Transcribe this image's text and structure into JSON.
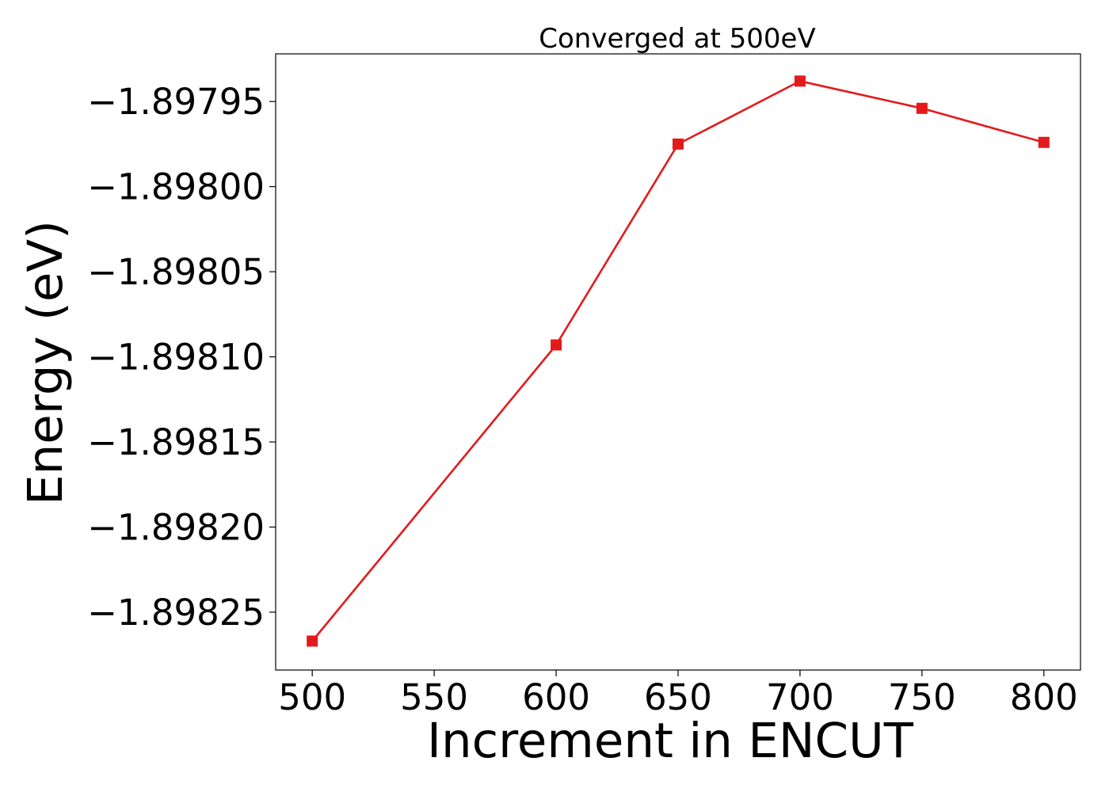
{
  "chart_data": {
    "type": "line",
    "title": "Converged at 500eV",
    "xlabel": "Increment in ENCUT",
    "ylabel": "Energy (eV)",
    "x": [
      500,
      600,
      650,
      700,
      750,
      800
    ],
    "series": [
      {
        "values": [
          -1.898267,
          -1.898093,
          -1.897975,
          -1.897938,
          -1.897954,
          -1.897974
        ],
        "color": "#e31a1c",
        "marker": "square"
      }
    ],
    "xticks": [
      500,
      550,
      600,
      650,
      700,
      750,
      800
    ],
    "xtick_labels": [
      "500",
      "550",
      "600",
      "650",
      "700",
      "750",
      "800"
    ],
    "yticks": [
      -1.89825,
      -1.8982,
      -1.89815,
      -1.8981,
      -1.89805,
      -1.898,
      -1.89795
    ],
    "ytick_labels": [
      "−1.89825",
      "−1.89820",
      "−1.89815",
      "−1.89810",
      "−1.89805",
      "−1.89800",
      "−1.89795"
    ],
    "xlim": [
      485,
      815
    ],
    "ylim": [
      -1.898284,
      -1.897922
    ],
    "grid": false,
    "legend": false
  }
}
